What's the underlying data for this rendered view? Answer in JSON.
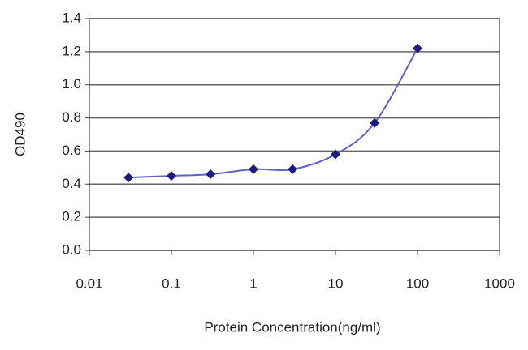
{
  "chart_data": {
    "type": "line",
    "x_label": "Protein Concentration(ng/ml)",
    "y_label": "OD490",
    "x": [
      0.03,
      0.1,
      0.3,
      1,
      3,
      10,
      30,
      100
    ],
    "values": [
      0.44,
      0.45,
      0.46,
      0.49,
      0.49,
      0.58,
      0.77,
      1.22
    ],
    "color": "#6060c8",
    "marker_color": "#1c1c80",
    "xscale": "log",
    "xlim": [
      0.01,
      1000
    ],
    "xticks": [
      0.01,
      0.1,
      1,
      10,
      100,
      1000
    ],
    "ylim": [
      0,
      1.4
    ],
    "yticks": [
      {
        "value": 0,
        "label": "0.0"
      },
      0.2,
      0.4,
      0.6,
      0.8,
      {
        "value": 1,
        "label": "1.0"
      },
      1.2,
      1.4
    ],
    "grid": true
  }
}
